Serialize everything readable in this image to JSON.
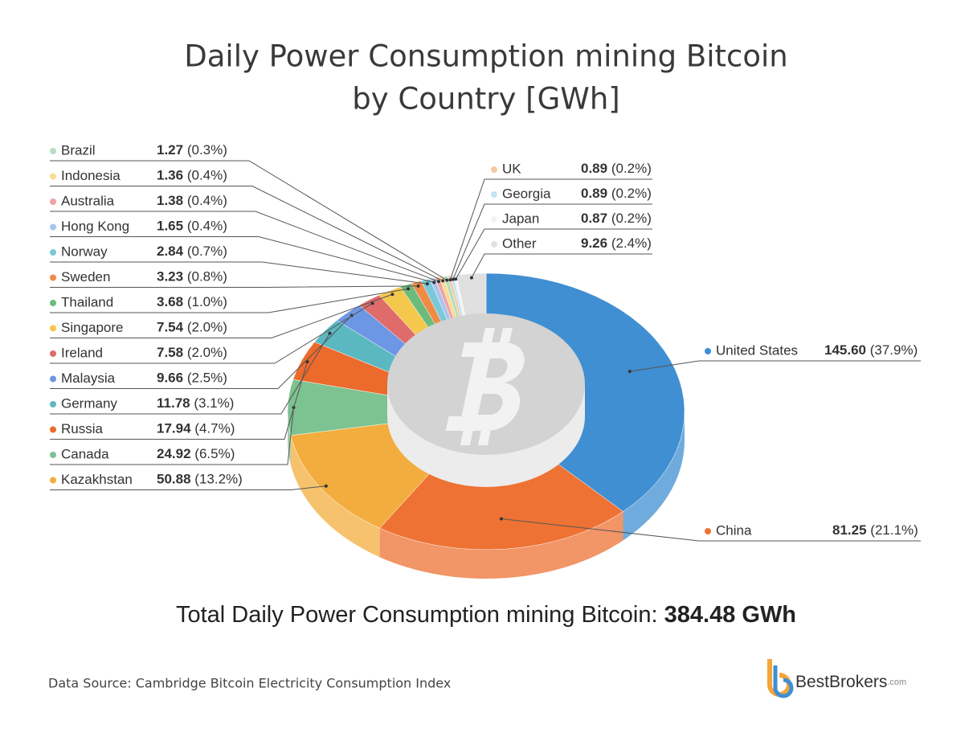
{
  "chart_data": {
    "type": "pie",
    "title": [
      "Daily Power Consumption mining Bitcoin",
      "by Country [GWh]"
    ],
    "categories": [
      "United States",
      "China",
      "Kazakhstan",
      "Canada",
      "Russia",
      "Germany",
      "Malaysia",
      "Ireland",
      "Singapore",
      "Thailand",
      "Sweden",
      "Norway",
      "Hong Kong",
      "Australia",
      "Indonesia",
      "Brazil",
      "UK",
      "Georgia",
      "Japan",
      "Other"
    ],
    "values": [
      145.6,
      81.25,
      50.88,
      24.92,
      17.94,
      11.78,
      9.66,
      7.58,
      7.54,
      3.68,
      3.23,
      2.84,
      1.65,
      1.38,
      1.36,
      1.27,
      0.89,
      0.89,
      0.87,
      9.26
    ],
    "value_labels": [
      "145.60",
      "81.25",
      "50.88",
      "24.92",
      "17.94",
      "11.78",
      "9.66",
      "7.58",
      "7.54",
      "3.68",
      "3.23",
      "2.84",
      "1.65",
      "1.38",
      "1.36",
      "1.27",
      "0.89",
      "0.89",
      "0.87",
      "9.26"
    ],
    "share_labels": [
      "(37.9%)",
      "(21.1%)",
      "(13.2%)",
      "(6.5%)",
      "(4.7%)",
      "(3.1%)",
      "(2.5%)",
      "(2.0%)",
      "(2.0%)",
      "(1.0%)",
      "(0.8%)",
      "(0.7%)",
      "(0.4%)",
      "(0.4%)",
      "(0.4%)",
      "(0.3%)",
      "(0.2%)",
      "(0.2%)",
      "(0.2%)",
      "(2.4%)"
    ],
    "colors": [
      "#3f8fd2",
      "#ee7234",
      "#f3ad3e",
      "#7dc291",
      "#ec6a2c",
      "#5bb8c0",
      "#6d97e4",
      "#e06b6b",
      "#f4c84c",
      "#6dba7d",
      "#ef8b45",
      "#7bc8d8",
      "#a9c3f0",
      "#f0a3a3",
      "#f7de8f",
      "#b7dcc0",
      "#f4c9a2",
      "#c2e4f2",
      "#f4f4f4",
      "#e0e0e0"
    ],
    "total_label": "Total Daily Power Consumption mining Bitcoin:",
    "total_value": "384.48 GWh",
    "source": "Data Source: Cambridge Bitcoin Electricity Consumption Index",
    "brand": "BestBrokers",
    "brand_suffix": ".com"
  }
}
